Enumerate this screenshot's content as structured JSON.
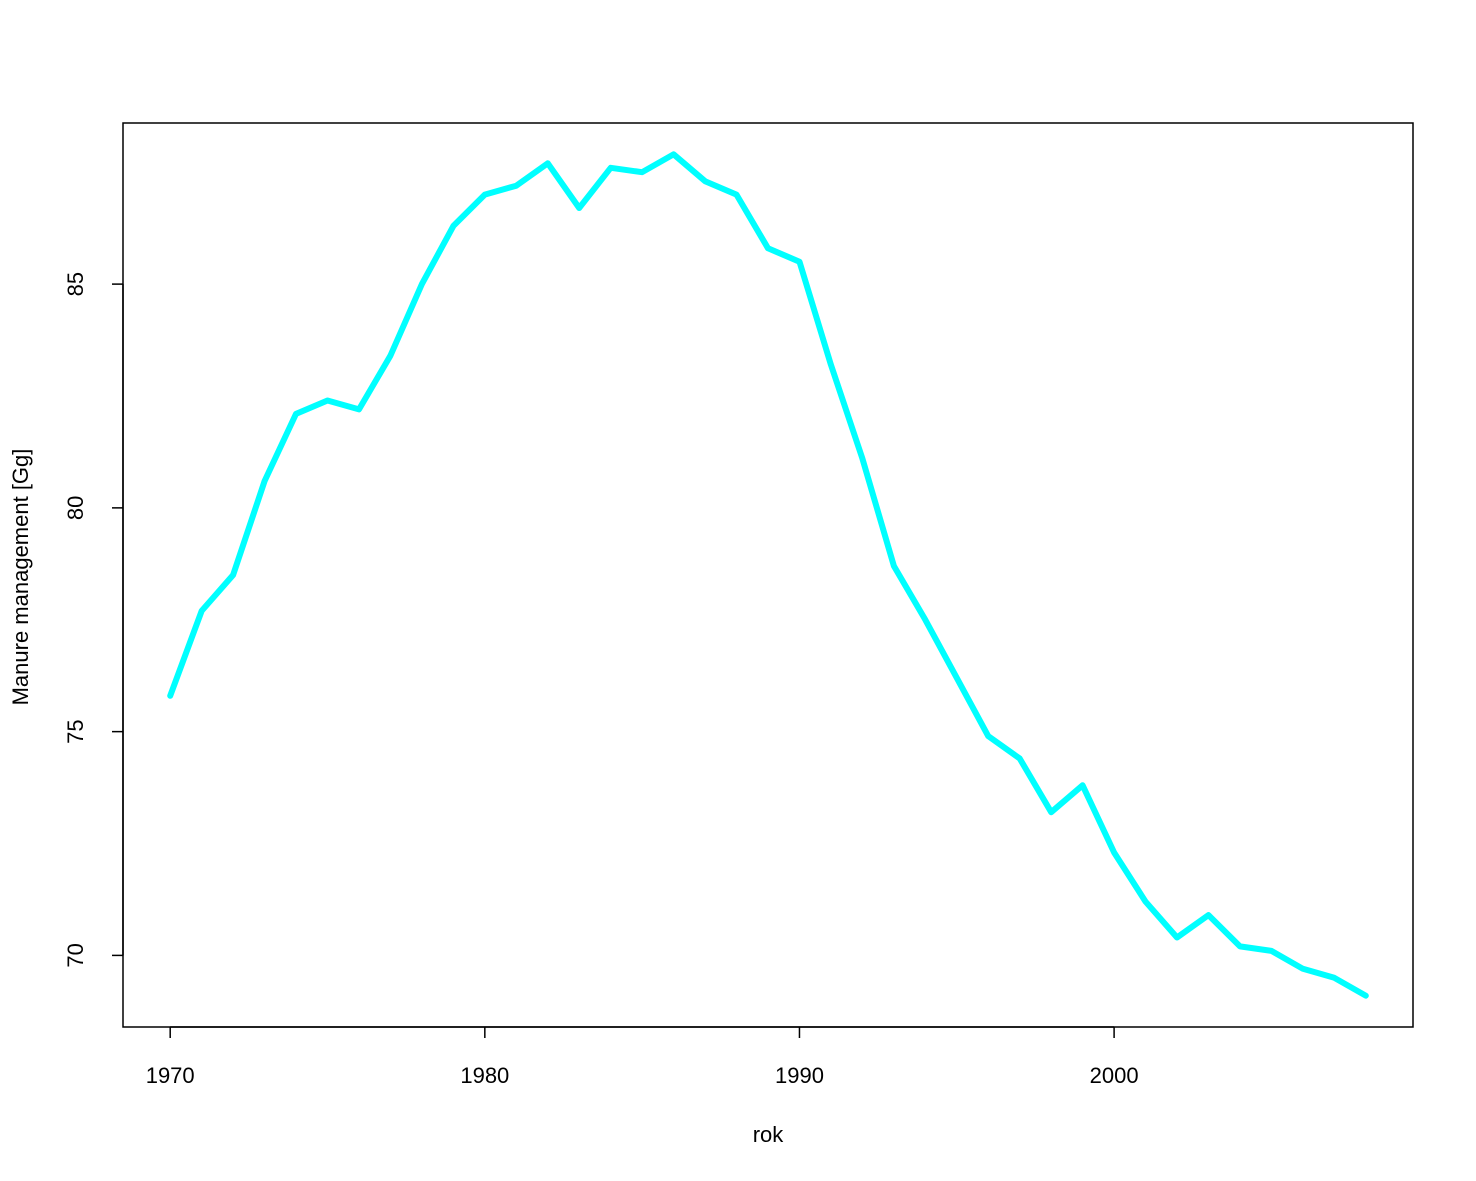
{
  "chart_data": {
    "type": "line",
    "title": "",
    "xlabel": "rok",
    "ylabel": "Manure management  [Gg]",
    "x": [
      1970,
      1971,
      1972,
      1973,
      1974,
      1975,
      1976,
      1977,
      1978,
      1979,
      1980,
      1981,
      1982,
      1983,
      1984,
      1985,
      1986,
      1987,
      1988,
      1989,
      1990,
      1991,
      1992,
      1993,
      1994,
      1995,
      1996,
      1997,
      1998,
      1999,
      2000,
      2001,
      2002,
      2003,
      2004,
      2005,
      2006,
      2007,
      2008
    ],
    "series": [
      {
        "color": "#00ffff",
        "values": [
          75.8,
          77.7,
          78.5,
          80.6,
          82.1,
          82.4,
          82.2,
          83.4,
          85.0,
          86.3,
          87.0,
          87.2,
          87.7,
          86.7,
          87.6,
          87.5,
          87.9,
          87.3,
          87.0,
          85.8,
          85.5,
          83.2,
          81.1,
          78.7,
          77.5,
          76.2,
          74.9,
          74.4,
          73.2,
          73.8,
          72.3,
          71.2,
          70.4,
          70.9,
          70.2,
          70.1,
          69.7,
          69.5,
          69.1
        ]
      }
    ],
    "xticks": [
      1970,
      1980,
      1990,
      2000
    ],
    "yticks": [
      70,
      75,
      80,
      85
    ],
    "xlim": [
      1968.5,
      2009.5
    ],
    "ylim": [
      68.4,
      88.6
    ],
    "grid": false,
    "legend": "none"
  }
}
